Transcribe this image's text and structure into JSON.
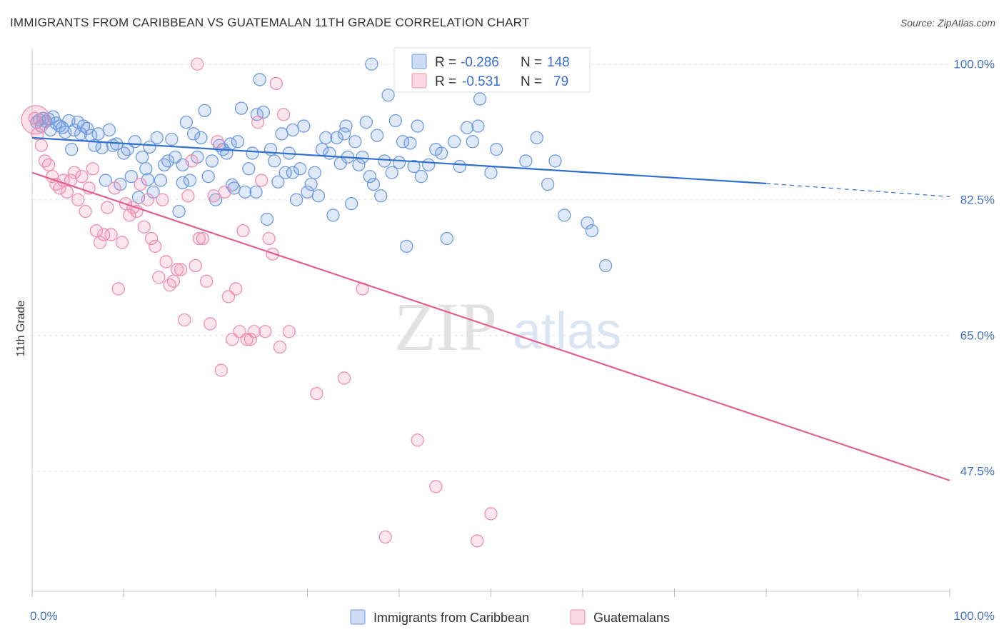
{
  "header": {
    "title": "IMMIGRANTS FROM CARIBBEAN VS GUATEMALAN 11TH GRADE CORRELATION CHART",
    "source": "Source: ZipAtlas.com"
  },
  "watermark": {
    "zip": "ZIP",
    "atlas": "atlas"
  },
  "legend": {
    "r_label": "R =",
    "n_label": "N =",
    "entries": [
      {
        "r": "-0.286",
        "n": "148",
        "color": "#6f9be0"
      },
      {
        "r": "-0.531",
        "n": "79",
        "color": "#ee8fb0"
      }
    ]
  },
  "bottom_legend": [
    "Immigrants from Caribbean",
    "Guatemalans"
  ],
  "chart_data": {
    "type": "scatter",
    "xlabel": "",
    "ylabel": "11th Grade",
    "xlim": [
      0,
      100
    ],
    "ylim": [
      32,
      102
    ],
    "x_tick_labels": [
      "0.0%",
      "100.0%"
    ],
    "y_ticks": [
      100.0,
      82.5,
      65.0,
      47.5
    ],
    "y_tick_labels": [
      "100.0%",
      "82.5%",
      "65.0%",
      "47.5%"
    ],
    "grid": true,
    "series": [
      {
        "name": "Immigrants from Caribbean",
        "color": "#6f9be0",
        "trend": {
          "x0": 0,
          "y0": 90.5,
          "x1": 80,
          "y1": 84.6,
          "dash_to_x": 100,
          "dash_to_y": 82.9
        },
        "points": [
          [
            0.5,
            92.5
          ],
          [
            0.8,
            92.8
          ],
          [
            1.0,
            92.0
          ],
          [
            1.2,
            93.0
          ],
          [
            1.5,
            92.6
          ],
          [
            1.8,
            92.9
          ],
          [
            2.0,
            91.5
          ],
          [
            2.3,
            93.2
          ],
          [
            2.6,
            92.4
          ],
          [
            3.0,
            92.0
          ],
          [
            3.3,
            91.8
          ],
          [
            3.6,
            91.2
          ],
          [
            4.0,
            92.7
          ],
          [
            4.3,
            89.0
          ],
          [
            4.6,
            91.5
          ],
          [
            5.0,
            92.5
          ],
          [
            5.3,
            91.0
          ],
          [
            5.6,
            92.0
          ],
          [
            6.0,
            91.7
          ],
          [
            6.4,
            90.8
          ],
          [
            6.8,
            89.5
          ],
          [
            7.2,
            91.0
          ],
          [
            7.6,
            89.2
          ],
          [
            8.0,
            85.0
          ],
          [
            8.4,
            91.5
          ],
          [
            8.8,
            89.5
          ],
          [
            9.2,
            89.7
          ],
          [
            9.6,
            84.5
          ],
          [
            10.0,
            88.5
          ],
          [
            10.4,
            89.0
          ],
          [
            10.8,
            85.5
          ],
          [
            11.2,
            90.0
          ],
          [
            11.6,
            82.8
          ],
          [
            12.0,
            88.0
          ],
          [
            12.4,
            86.5
          ],
          [
            12.8,
            89.3
          ],
          [
            13.2,
            83.5
          ],
          [
            13.6,
            90.5
          ],
          [
            14.0,
            85.0
          ],
          [
            14.4,
            87.0
          ],
          [
            14.8,
            87.5
          ],
          [
            15.2,
            90.3
          ],
          [
            15.6,
            88.0
          ],
          [
            16.0,
            81.0
          ],
          [
            16.4,
            87.0
          ],
          [
            16.8,
            92.5
          ],
          [
            17.2,
            85.0
          ],
          [
            17.6,
            91.0
          ],
          [
            18.0,
            88.0
          ],
          [
            18.4,
            90.5
          ],
          [
            18.8,
            94.0
          ],
          [
            19.2,
            85.5
          ],
          [
            19.6,
            87.5
          ],
          [
            20.0,
            82.5
          ],
          [
            20.4,
            89.5
          ],
          [
            20.8,
            89.0
          ],
          [
            21.2,
            88.5
          ],
          [
            21.6,
            89.7
          ],
          [
            22.0,
            84.0
          ],
          [
            22.4,
            90.0
          ],
          [
            22.8,
            94.3
          ],
          [
            23.2,
            83.5
          ],
          [
            23.6,
            86.5
          ],
          [
            24.0,
            88.5
          ],
          [
            24.4,
            83.5
          ],
          [
            24.8,
            98.0
          ],
          [
            25.2,
            93.8
          ],
          [
            25.6,
            80.0
          ],
          [
            26.0,
            89.0
          ],
          [
            26.4,
            87.5
          ],
          [
            26.8,
            84.8
          ],
          [
            27.2,
            91.0
          ],
          [
            27.6,
            86.0
          ],
          [
            28.0,
            88.5
          ],
          [
            28.4,
            86.0
          ],
          [
            28.8,
            82.5
          ],
          [
            29.2,
            86.5
          ],
          [
            29.6,
            92.0
          ],
          [
            30.0,
            83.5
          ],
          [
            30.4,
            84.5
          ],
          [
            30.8,
            86.0
          ],
          [
            31.2,
            83.0
          ],
          [
            31.6,
            89.0
          ],
          [
            32.0,
            90.5
          ],
          [
            32.4,
            88.5
          ],
          [
            32.8,
            80.5
          ],
          [
            33.2,
            90.5
          ],
          [
            33.6,
            87.2
          ],
          [
            34.0,
            91.0
          ],
          [
            34.4,
            88.0
          ],
          [
            34.8,
            82.0
          ],
          [
            35.2,
            90.0
          ],
          [
            35.6,
            87.0
          ],
          [
            36.0,
            88.0
          ],
          [
            36.4,
            92.5
          ],
          [
            36.8,
            85.5
          ],
          [
            37.2,
            84.5
          ],
          [
            37.6,
            90.8
          ],
          [
            38.0,
            83.0
          ],
          [
            38.4,
            87.5
          ],
          [
            38.8,
            96.0
          ],
          [
            39.2,
            86.0
          ],
          [
            39.6,
            92.7
          ],
          [
            40.0,
            87.3
          ],
          [
            40.4,
            90.0
          ],
          [
            40.8,
            76.5
          ],
          [
            41.2,
            89.8
          ],
          [
            41.6,
            86.8
          ],
          [
            42.0,
            92.0
          ],
          [
            42.4,
            85.5
          ],
          [
            43.2,
            87.0
          ],
          [
            44.0,
            89.0
          ],
          [
            44.6,
            88.5
          ],
          [
            45.2,
            77.5
          ],
          [
            46.0,
            90.0
          ],
          [
            46.6,
            86.8
          ],
          [
            47.4,
            91.8
          ],
          [
            48.0,
            90.0
          ],
          [
            48.6,
            92.0
          ],
          [
            50.0,
            86.0
          ],
          [
            50.6,
            89.0
          ],
          [
            52.0,
            100.0
          ],
          [
            52.8,
            100.0
          ],
          [
            53.8,
            87.5
          ],
          [
            55.0,
            90.5
          ],
          [
            56.2,
            84.5
          ],
          [
            57.0,
            87.5
          ],
          [
            58.0,
            80.5
          ],
          [
            60.5,
            79.5
          ],
          [
            61.0,
            78.5
          ],
          [
            62.5,
            74.0
          ],
          [
            46.5,
            100.0
          ],
          [
            48.8,
            95.5
          ],
          [
            37.0,
            100.0
          ],
          [
            24.5,
            93.5
          ],
          [
            28.4,
            91.5
          ],
          [
            34.2,
            92.0
          ],
          [
            21.8,
            84.4
          ],
          [
            16.4,
            84.7
          ],
          [
            12.6,
            85.1
          ]
        ]
      },
      {
        "name": "Guatemalans",
        "color": "#ee8fb0",
        "trend": {
          "x0": 0,
          "y0": 86.0,
          "x1": 100,
          "y1": 46.3
        },
        "points": [
          [
            0.3,
            93.0
          ],
          [
            0.6,
            91.0
          ],
          [
            1.0,
            89.5
          ],
          [
            1.4,
            87.5
          ],
          [
            1.8,
            87.0
          ],
          [
            2.2,
            85.5
          ],
          [
            2.6,
            84.5
          ],
          [
            3.0,
            84.0
          ],
          [
            3.4,
            85.0
          ],
          [
            3.8,
            83.5
          ],
          [
            4.2,
            85.0
          ],
          [
            4.6,
            86.0
          ],
          [
            5.0,
            82.5
          ],
          [
            5.4,
            85.5
          ],
          [
            5.8,
            81.0
          ],
          [
            6.2,
            84.0
          ],
          [
            6.6,
            86.5
          ],
          [
            7.0,
            78.5
          ],
          [
            7.4,
            77.0
          ],
          [
            7.8,
            78.0
          ],
          [
            8.2,
            81.5
          ],
          [
            8.6,
            78.0
          ],
          [
            9.0,
            84.0
          ],
          [
            9.4,
            71.0
          ],
          [
            9.8,
            77.0
          ],
          [
            10.2,
            82.0
          ],
          [
            10.6,
            80.5
          ],
          [
            11.0,
            81.5
          ],
          [
            11.4,
            81.0
          ],
          [
            11.8,
            84.5
          ],
          [
            12.2,
            79.0
          ],
          [
            12.6,
            82.5
          ],
          [
            13.0,
            77.5
          ],
          [
            13.4,
            76.5
          ],
          [
            13.8,
            72.5
          ],
          [
            14.2,
            82.5
          ],
          [
            14.6,
            74.5
          ],
          [
            15.0,
            71.5
          ],
          [
            15.4,
            72.0
          ],
          [
            15.8,
            73.5
          ],
          [
            16.2,
            73.5
          ],
          [
            16.6,
            67.0
          ],
          [
            17.0,
            83.0
          ],
          [
            17.4,
            87.5
          ],
          [
            17.8,
            74.0
          ],
          [
            18.2,
            77.5
          ],
          [
            18.6,
            77.5
          ],
          [
            19.0,
            72.0
          ],
          [
            19.4,
            66.5
          ],
          [
            19.8,
            83.0
          ],
          [
            20.2,
            90.0
          ],
          [
            20.6,
            60.5
          ],
          [
            21.0,
            83.5
          ],
          [
            21.4,
            70.0
          ],
          [
            21.8,
            64.5
          ],
          [
            22.2,
            71.0
          ],
          [
            22.6,
            65.5
          ],
          [
            23.0,
            78.5
          ],
          [
            23.4,
            64.5
          ],
          [
            23.8,
            64.5
          ],
          [
            24.2,
            65.5
          ],
          [
            24.6,
            92.5
          ],
          [
            25.0,
            85.0
          ],
          [
            25.4,
            65.5
          ],
          [
            25.8,
            77.5
          ],
          [
            26.2,
            75.5
          ],
          [
            26.6,
            97.5
          ],
          [
            27.0,
            63.5
          ],
          [
            27.4,
            93.5
          ],
          [
            28.0,
            65.5
          ],
          [
            31.0,
            57.5
          ],
          [
            34.0,
            59.5
          ],
          [
            36.0,
            71.0
          ],
          [
            38.5,
            39.0
          ],
          [
            42.0,
            51.5
          ],
          [
            44.0,
            45.5
          ],
          [
            48.5,
            38.5
          ],
          [
            50.0,
            42.0
          ],
          [
            18.0,
            100.0
          ]
        ]
      }
    ]
  }
}
